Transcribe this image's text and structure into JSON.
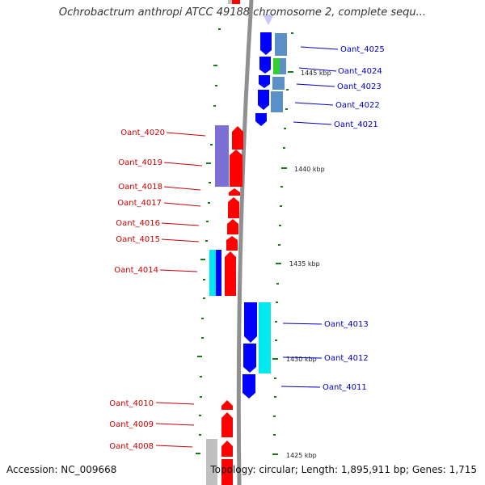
{
  "title": "Ochrobactrum anthropi ATCC 49188 chromosome 2, complete sequ...",
  "accession": "Accession: NC_009668",
  "stats": "Topology: circular; Length: 1,895,911 bp; Genes: 1,715",
  "colors": {
    "forward": "#ff0000",
    "reverse": "#0000ff",
    "forward_label": "#cc0000",
    "reverse_label": "#0000cc",
    "purple": "#7b6fd6",
    "cyan": "#00e8f0",
    "steelblue": "#5a8fc8",
    "green": "#33cc33",
    "gray": "#c0c0c0",
    "tick": "#1a7a1a",
    "backbone": "#909090"
  },
  "kbp_labels": [
    {
      "kbp": 1445,
      "text": "1445 kbp"
    },
    {
      "kbp": 1440,
      "text": "1440 kbp"
    },
    {
      "kbp": 1435,
      "text": "1435 kbp"
    },
    {
      "kbp": 1430,
      "text": "1430 kbp"
    },
    {
      "kbp": 1425,
      "text": "1425 kbp"
    }
  ],
  "gene_labels_left": [
    "Oant_4020",
    "Oant_4019",
    "Oant_4018",
    "Oant_4017",
    "Oant_4016",
    "Oant_4015",
    "Oant_4014",
    "Oant_4010",
    "Oant_4009",
    "Oant_4008"
  ],
  "gene_labels_right": [
    "Oant_4025",
    "Oant_4024",
    "Oant_4023",
    "Oant_4022",
    "Oant_4021",
    "Oant_4013",
    "Oant_4012",
    "Oant_4011"
  ]
}
